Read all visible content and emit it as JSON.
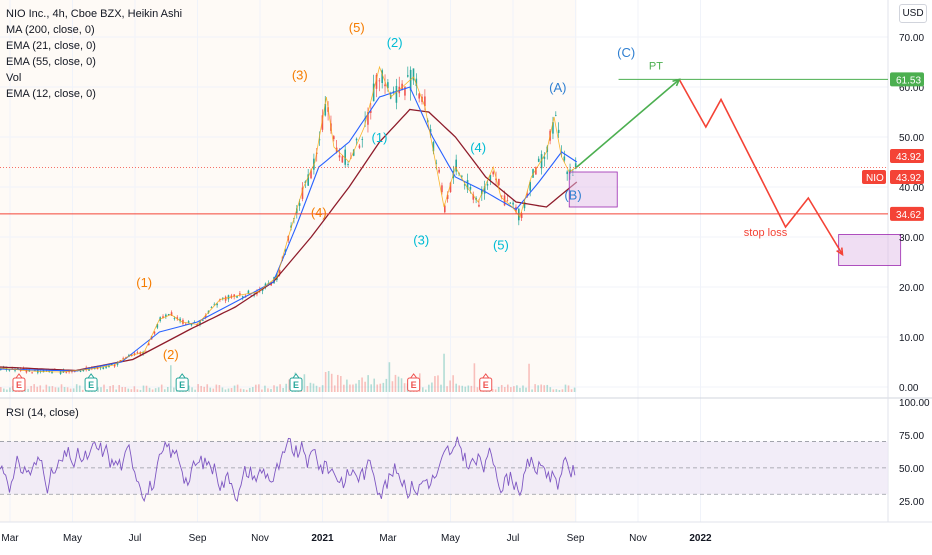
{
  "header": {
    "symbol_line": "NIO Inc., 4h, Cboe BZX, Heikin Ashi",
    "indicators": [
      "MA (200, close, 0)",
      "EMA (21, close, 0)",
      "EMA (55, close, 0)",
      "Vol",
      "EMA (12, close, 0)"
    ],
    "currency": "USD",
    "rsi_label": "RSI (14, close)"
  },
  "colors": {
    "up": "#26a69a",
    "down": "#ef5350",
    "ma200": "#8e1c2b",
    "ema21": "#2962ff",
    "ema55": "#8e1c2b",
    "ema12": "#f7a600",
    "wave_orange": "#f57c00",
    "wave_cyan": "#00bcd4",
    "wave_blue": "#2f7fd1",
    "target_green": "#4caf50",
    "stop_red": "#f44336",
    "rsi_line": "#7e57c2",
    "rsi_band": "#ede7f6",
    "box_fill": "#e1bee7",
    "box_stroke": "#9c27b0"
  },
  "chart_data": {
    "type": "candlestick",
    "title": "NIO Inc., 4h, Cboe BZX, Heikin Ashi",
    "x_ticks": [
      "Mar",
      "May",
      "Jul",
      "Sep",
      "Nov",
      "2021",
      "Mar",
      "May",
      "Jul",
      "Sep",
      "Nov",
      "2022"
    ],
    "y_ticks": [
      "70.00",
      "60.00",
      "50.00",
      "40.00",
      "30.00",
      "20.00",
      "10.00",
      "0.00"
    ],
    "ylim": [
      -1,
      73
    ],
    "price_path": [
      [
        0,
        3.8
      ],
      [
        8,
        3.2
      ],
      [
        16,
        3.0
      ],
      [
        24,
        3.6
      ],
      [
        30,
        4.4
      ],
      [
        34,
        6.2
      ],
      [
        38,
        7.0
      ],
      [
        42,
        13.5
      ],
      [
        45,
        14.5
      ],
      [
        48,
        13.0
      ],
      [
        52,
        12.5
      ],
      [
        58,
        17.5
      ],
      [
        64,
        18.5
      ],
      [
        68,
        19.0
      ],
      [
        73,
        22.0
      ],
      [
        76,
        30.0
      ],
      [
        80,
        40.0
      ],
      [
        83,
        45.0
      ],
      [
        86,
        58.0
      ],
      [
        88,
        48.0
      ],
      [
        92,
        45.0
      ],
      [
        96,
        52.0
      ],
      [
        100,
        64.0
      ],
      [
        103,
        58.0
      ],
      [
        106,
        60.0
      ],
      [
        109,
        62.0
      ],
      [
        112,
        56.0
      ],
      [
        115,
        44.0
      ],
      [
        117,
        36.0
      ],
      [
        120,
        44.0
      ],
      [
        123,
        40.0
      ],
      [
        126,
        37.0
      ],
      [
        130,
        44.0
      ],
      [
        132,
        38.0
      ],
      [
        135,
        36.0
      ],
      [
        137,
        34.0
      ],
      [
        140,
        42.0
      ],
      [
        144,
        47.0
      ],
      [
        146,
        54.0
      ],
      [
        148,
        46.0
      ],
      [
        150,
        43.0
      ],
      [
        152,
        44.0
      ]
    ],
    "ma200_path": [
      [
        0,
        4.0
      ],
      [
        20,
        3.3
      ],
      [
        35,
        5.5
      ],
      [
        50,
        11.5
      ],
      [
        62,
        16.0
      ],
      [
        72,
        21.0
      ],
      [
        82,
        30.0
      ],
      [
        92,
        40.0
      ],
      [
        100,
        49.0
      ],
      [
        108,
        55.5
      ],
      [
        113,
        55.0
      ],
      [
        120,
        50.0
      ],
      [
        128,
        42.0
      ],
      [
        136,
        37.0
      ],
      [
        144,
        36.0
      ],
      [
        152,
        41.0
      ]
    ],
    "ema21_path": [
      [
        0,
        3.6
      ],
      [
        20,
        3.2
      ],
      [
        32,
        5.0
      ],
      [
        42,
        11.0
      ],
      [
        52,
        13.0
      ],
      [
        62,
        17.0
      ],
      [
        72,
        21.0
      ],
      [
        78,
        32.0
      ],
      [
        84,
        44.0
      ],
      [
        92,
        49.0
      ],
      [
        100,
        58.0
      ],
      [
        108,
        60.0
      ],
      [
        114,
        50.0
      ],
      [
        120,
        42.0
      ],
      [
        128,
        39.0
      ],
      [
        136,
        35.5
      ],
      [
        142,
        41.0
      ],
      [
        148,
        47.0
      ],
      [
        152,
        45.0
      ]
    ],
    "annotations": {
      "wave_labels": [
        {
          "text": "(1)",
          "t": 38,
          "v": 20.0,
          "color": "wave_orange"
        },
        {
          "text": "(2)",
          "t": 45,
          "v": 5.6,
          "color": "wave_orange"
        },
        {
          "text": "(3)",
          "t": 79,
          "v": 61.5,
          "color": "wave_orange"
        },
        {
          "text": "(4)",
          "t": 84,
          "v": 34.0,
          "color": "wave_orange"
        },
        {
          "text": "(5)",
          "t": 94,
          "v": 71.0,
          "color": "wave_orange"
        },
        {
          "text": "(1)",
          "t": 100,
          "v": 49.0,
          "color": "wave_cyan"
        },
        {
          "text": "(2)",
          "t": 104,
          "v": 68.0,
          "color": "wave_cyan"
        },
        {
          "text": "(3)",
          "t": 111,
          "v": 28.5,
          "color": "wave_cyan"
        },
        {
          "text": "(4)",
          "t": 126,
          "v": 47.0,
          "color": "wave_cyan"
        },
        {
          "text": "(5)",
          "t": 132,
          "v": 27.5,
          "color": "wave_cyan"
        },
        {
          "text": "(A)",
          "t": 147,
          "v": 59.0,
          "color": "wave_blue"
        },
        {
          "text": "(B)",
          "t": 151,
          "v": 37.5,
          "color": "wave_blue"
        },
        {
          "text": "(C)",
          "t": 165,
          "v": 66.0,
          "color": "wave_blue"
        }
      ],
      "projection_up": [
        [
          152,
          44.0
        ],
        [
          179,
          61.5
        ]
      ],
      "projection_down": [
        [
          179,
          61.5
        ],
        [
          186,
          52.0
        ],
        [
          190,
          57.5
        ],
        [
          207,
          32.0
        ],
        [
          213,
          37.8
        ],
        [
          222,
          26.5
        ]
      ],
      "target_label": "PT",
      "stop_label": "stop loss",
      "target_price": "61.53",
      "stop_price": "34.62",
      "last_price": "43.92",
      "ticker": "NIO",
      "hline_target": 61.53,
      "hline_stop": 34.62,
      "hline_last": 43.92
    },
    "earnings_markers": [
      {
        "label": "E",
        "t": 5,
        "color": "down"
      },
      {
        "label": "E",
        "t": 24,
        "color": "up"
      },
      {
        "label": "E",
        "t": 48,
        "color": "up"
      },
      {
        "label": "E",
        "t": 78,
        "color": "up"
      },
      {
        "label": "E",
        "t": 109,
        "color": "down"
      },
      {
        "label": "E",
        "t": 128,
        "color": "down"
      }
    ],
    "rsi": {
      "label": "RSI (14, close)",
      "y_ticks": [
        "100.00",
        "75.00",
        "50.00",
        "25.00"
      ],
      "ylim": [
        12,
        100
      ],
      "levels": [
        70,
        50,
        30
      ]
    }
  }
}
